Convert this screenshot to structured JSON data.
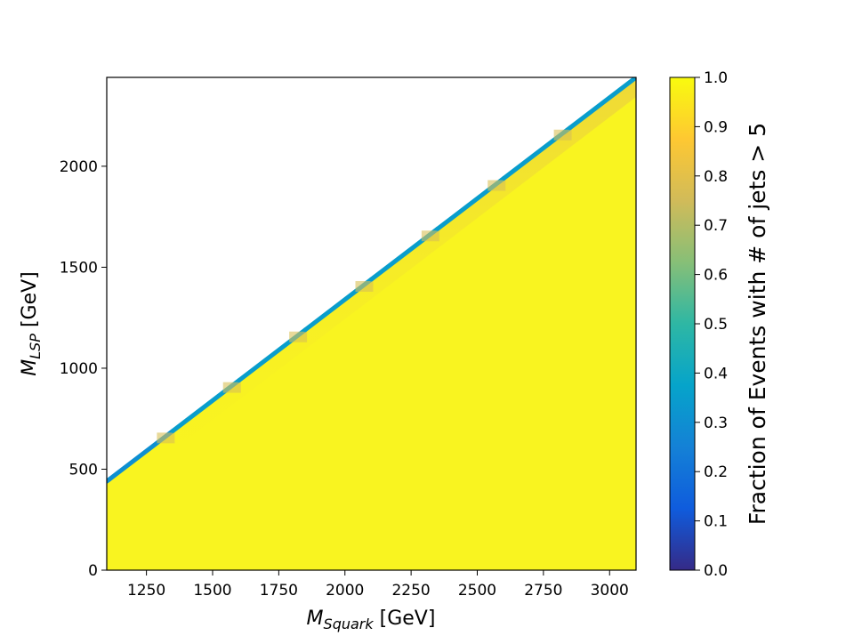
{
  "chart_data": {
    "type": "heatmap",
    "xlabel": {
      "main": "M",
      "sub": "Squark",
      "unit": " [GeV]"
    },
    "ylabel": {
      "main": "M",
      "sub": "LSP",
      "unit": " [GeV]"
    },
    "colorbar_label": "Fraction of Events with # of jets > 5",
    "xlim": [
      1100,
      3100
    ],
    "ylim": [
      0,
      2440
    ],
    "x_ticks": [
      1250,
      1500,
      1750,
      2000,
      2250,
      2500,
      2750,
      3000
    ],
    "y_ticks": [
      0,
      500,
      1000,
      1500,
      2000
    ],
    "colorbar_ticks": [
      "0.0",
      "0.1",
      "0.2",
      "0.3",
      "0.4",
      "0.5",
      "0.6",
      "0.7",
      "0.8",
      "0.9",
      "1.0"
    ],
    "colorbar_range": [
      0.0,
      1.0
    ],
    "colormap": "parula",
    "colormap_stops": [
      "#352a87",
      "#0f5cdd",
      "#1481d6",
      "#06a4ca",
      "#2eb7a4",
      "#87bf77",
      "#d1bb59",
      "#fec832",
      "#f9fb0e"
    ],
    "fill_color": "#f9f420",
    "filled_region": "M_LSP below the diagonal from (1100, 440) to (3100, 2440)",
    "boundary": {
      "x": [
        1100,
        3100
      ],
      "y": [
        440,
        2440
      ]
    },
    "boundary_band": [
      {
        "x": 1100,
        "y": 440,
        "value": 0.3
      },
      {
        "x": 1350,
        "y": 690,
        "value": 0.35
      },
      {
        "x": 1600,
        "y": 940,
        "value": 0.35
      },
      {
        "x": 1850,
        "y": 1190,
        "value": 0.35
      },
      {
        "x": 2100,
        "y": 1440,
        "value": 0.35
      },
      {
        "x": 2350,
        "y": 1690,
        "value": 0.35
      },
      {
        "x": 2600,
        "y": 1940,
        "value": 0.35
      },
      {
        "x": 2850,
        "y": 2190,
        "value": 0.35
      },
      {
        "x": 3100,
        "y": 2440,
        "value": 0.35
      }
    ],
    "typical_value_inside": 0.97
  }
}
